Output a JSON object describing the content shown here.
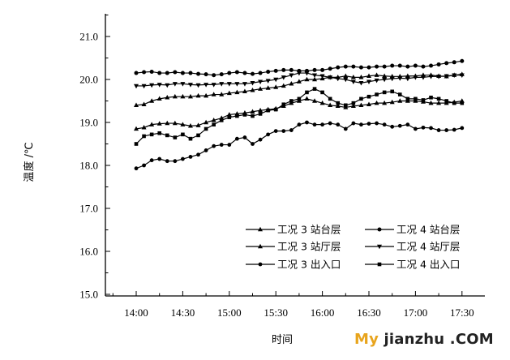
{
  "chart_data": {
    "type": "line",
    "title": "",
    "xlabel": "时间",
    "ylabel": "温度 /℃",
    "ylim": [
      15.0,
      21.5
    ],
    "yticks": [
      "15.0",
      "16.0",
      "17.0",
      "18.0",
      "19.0",
      "20.0",
      "21.0"
    ],
    "xlim": [
      "13:45",
      "17:45"
    ],
    "xticks": [
      "14:00",
      "14:30",
      "15:00",
      "15:30",
      "16:00",
      "16:30",
      "17:00",
      "17:30"
    ],
    "grid": false,
    "legend_position": "lower-right",
    "x": [
      "14:00",
      "14:05",
      "14:10",
      "14:15",
      "14:20",
      "14:25",
      "14:30",
      "14:35",
      "14:40",
      "14:45",
      "14:50",
      "14:55",
      "15:00",
      "15:05",
      "15:10",
      "15:15",
      "15:20",
      "15:25",
      "15:30",
      "15:35",
      "15:40",
      "15:45",
      "15:50",
      "15:55",
      "16:00",
      "16:05",
      "16:10",
      "16:15",
      "16:20",
      "16:25",
      "16:30",
      "16:35",
      "16:40",
      "16:45",
      "16:50",
      "16:55",
      "17:00",
      "17:05",
      "17:10",
      "17:15",
      "17:20",
      "17:25",
      "17:30"
    ],
    "series": [
      {
        "name": "工况 3 站台层",
        "marker": "triangle-up-line",
        "color": "#000000",
        "values": [
          18.85,
          18.88,
          18.95,
          18.97,
          18.98,
          18.98,
          18.95,
          18.92,
          18.93,
          19.0,
          19.05,
          19.1,
          19.18,
          19.2,
          19.22,
          19.25,
          19.28,
          19.3,
          19.32,
          19.38,
          19.45,
          19.5,
          19.55,
          19.5,
          19.45,
          19.4,
          19.38,
          19.35,
          19.38,
          19.4,
          19.42,
          19.45,
          19.45,
          19.47,
          19.5,
          19.5,
          19.5,
          19.48,
          19.45,
          19.45,
          19.45,
          19.47,
          19.5
        ]
      },
      {
        "name": "工况 4 站台层",
        "marker": "circle-dot",
        "color": "#000000",
        "values": [
          20.15,
          20.17,
          20.18,
          20.15,
          20.15,
          20.17,
          20.15,
          20.15,
          20.13,
          20.12,
          20.1,
          20.12,
          20.15,
          20.17,
          20.15,
          20.13,
          20.15,
          20.18,
          20.2,
          20.22,
          20.22,
          20.2,
          20.2,
          20.22,
          20.22,
          20.25,
          20.28,
          20.3,
          20.3,
          20.28,
          20.28,
          20.3,
          20.3,
          20.32,
          20.32,
          20.3,
          20.32,
          20.3,
          20.32,
          20.35,
          20.38,
          20.4,
          20.43
        ]
      },
      {
        "name": "工况 3 站厅层",
        "marker": "triangle-up",
        "color": "#000000",
        "values": [
          19.4,
          19.42,
          19.5,
          19.55,
          19.58,
          19.6,
          19.6,
          19.6,
          19.62,
          19.62,
          19.65,
          19.65,
          19.68,
          19.7,
          19.72,
          19.75,
          19.78,
          19.8,
          19.82,
          19.85,
          19.9,
          19.95,
          20.0,
          20.0,
          20.02,
          20.05,
          20.05,
          20.08,
          20.05,
          20.05,
          20.08,
          20.1,
          20.08,
          20.07,
          20.07,
          20.08,
          20.08,
          20.1,
          20.1,
          20.08,
          20.07,
          20.1,
          20.12
        ]
      },
      {
        "name": "工况 4 站厅层",
        "marker": "triangle-down",
        "color": "#000000",
        "values": [
          19.85,
          19.85,
          19.87,
          19.88,
          19.87,
          19.9,
          19.9,
          19.88,
          19.87,
          19.88,
          19.88,
          19.9,
          19.9,
          19.9,
          19.9,
          19.92,
          19.95,
          19.97,
          20.0,
          20.05,
          20.1,
          20.15,
          20.15,
          20.1,
          20.08,
          20.05,
          20.02,
          20.0,
          19.95,
          19.92,
          19.95,
          19.98,
          20.0,
          20.02,
          20.03,
          20.02,
          20.05,
          20.05,
          20.07,
          20.07,
          20.08,
          20.1,
          20.1
        ]
      },
      {
        "name": "工况 3 出入口",
        "marker": "circle",
        "color": "#000000",
        "values": [
          17.93,
          18.0,
          18.12,
          18.15,
          18.1,
          18.1,
          18.15,
          18.2,
          18.25,
          18.35,
          18.45,
          18.48,
          18.48,
          18.62,
          18.65,
          18.5,
          18.6,
          18.72,
          18.8,
          18.8,
          18.82,
          18.95,
          19.0,
          18.95,
          18.95,
          18.98,
          18.95,
          18.85,
          18.98,
          18.95,
          18.97,
          18.98,
          18.95,
          18.9,
          18.92,
          18.95,
          18.85,
          18.88,
          18.87,
          18.82,
          18.82,
          18.83,
          18.87
        ]
      },
      {
        "name": "工况 4 出入口",
        "marker": "square",
        "color": "#000000",
        "values": [
          18.5,
          18.68,
          18.72,
          18.75,
          18.7,
          18.65,
          18.72,
          18.62,
          18.7,
          18.85,
          18.95,
          19.05,
          19.12,
          19.15,
          19.18,
          19.15,
          19.2,
          19.28,
          19.3,
          19.42,
          19.5,
          19.55,
          19.7,
          19.78,
          19.7,
          19.55,
          19.45,
          19.4,
          19.45,
          19.55,
          19.6,
          19.65,
          19.7,
          19.72,
          19.65,
          19.55,
          19.55,
          19.52,
          19.58,
          19.55,
          19.5,
          19.45,
          19.45
        ]
      }
    ]
  },
  "watermark": {
    "my": "My",
    "rest": " jianzhu .COM"
  }
}
